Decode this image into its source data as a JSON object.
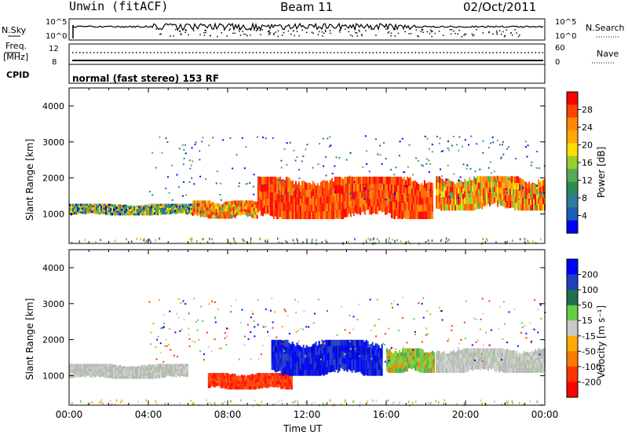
{
  "header": {
    "title": "Unwin (fitACF)",
    "beam": "Beam 11",
    "date": "02/Oct/2011"
  },
  "status_panels": {
    "nsky_label": "N.Sky",
    "nsky_ticks": [
      "10^5",
      "10^0"
    ],
    "nsearch_label": "N.Search",
    "freq_label": "Freq.",
    "freq_unit": "[MHz]",
    "freq_ticks": [
      "12",
      "8"
    ],
    "nave_label": "Nave",
    "nave_ticks": [
      "60",
      "0"
    ],
    "cpid_label": "CPID",
    "cpid_value": "normal (fast stereo) 153 RF"
  },
  "chart_data": [
    {
      "type": "heatmap",
      "name": "Power",
      "xlabel": "",
      "ylabel": "Slant Range [km]",
      "xlim": [
        0,
        24
      ],
      "ylim": [
        180,
        4500
      ],
      "yticks": [
        "1000",
        "2000",
        "3000",
        "4000"
      ],
      "colorbar_label": "Power [dB]",
      "colorbar_ticks": [
        "28",
        "24",
        "20",
        "16",
        "12",
        "8",
        "4"
      ],
      "colorbar_colors": [
        "#ff0000",
        "#ff4400",
        "#ff8800",
        "#ffaa00",
        "#ffdd00",
        "#9acd32",
        "#55aa55",
        "#2e8b57",
        "#2e7d9b",
        "#1a5fb4",
        "#0000ff"
      ],
      "regions": [
        {
          "from_ut": 0.0,
          "to_ut": 6.2,
          "range_lo": 950,
          "range_hi": 1300,
          "level": "low-medium"
        },
        {
          "from_ut": 6.2,
          "to_ut": 9.5,
          "range_lo": 850,
          "range_hi": 1400,
          "level": "medium"
        },
        {
          "from_ut": 9.5,
          "to_ut": 18.3,
          "range_lo": 800,
          "range_hi": 2100,
          "level": "high"
        },
        {
          "from_ut": 18.5,
          "to_ut": 24.0,
          "range_lo": 1050,
          "range_hi": 2100,
          "level": "medium-high"
        }
      ]
    },
    {
      "type": "heatmap",
      "name": "Velocity",
      "xlabel": "Time UT",
      "ylabel": "Slant Range [km]",
      "xlim": [
        0,
        24
      ],
      "ylim": [
        180,
        4500
      ],
      "xticks": [
        "00:00",
        "04:00",
        "08:00",
        "12:00",
        "16:00",
        "20:00",
        "00:00"
      ],
      "yticks": [
        "1000",
        "2000",
        "3000",
        "4000"
      ],
      "colorbar_label": "Velocity [m s⁻¹]",
      "colorbar_ticks": [
        "200",
        "100",
        "50",
        "15",
        "-15",
        "-50",
        "-100",
        "-200"
      ],
      "colorbar_colors": [
        "#0000ff",
        "#1f3fbf",
        "#1f6f4f",
        "#66cc44",
        "#c8c8c8",
        "#ffaa00",
        "#ff7a00",
        "#ff3300",
        "#ff0000"
      ],
      "regions": [
        {
          "from_ut": 0.0,
          "to_ut": 6.0,
          "range_lo": 900,
          "range_hi": 1350,
          "velocity": "-15 to 15"
        },
        {
          "from_ut": 7.0,
          "to_ut": 11.2,
          "range_lo": 600,
          "range_hi": 1100,
          "velocity": "-200"
        },
        {
          "from_ut": 10.2,
          "to_ut": 15.8,
          "range_lo": 950,
          "range_hi": 2050,
          "velocity": "200"
        },
        {
          "from_ut": 16.0,
          "to_ut": 18.4,
          "range_lo": 1050,
          "range_hi": 1800,
          "velocity": "15 to 50"
        },
        {
          "from_ut": 18.5,
          "to_ut": 24.0,
          "range_lo": 1050,
          "range_hi": 1800,
          "velocity": "-15 to 15"
        }
      ]
    }
  ]
}
